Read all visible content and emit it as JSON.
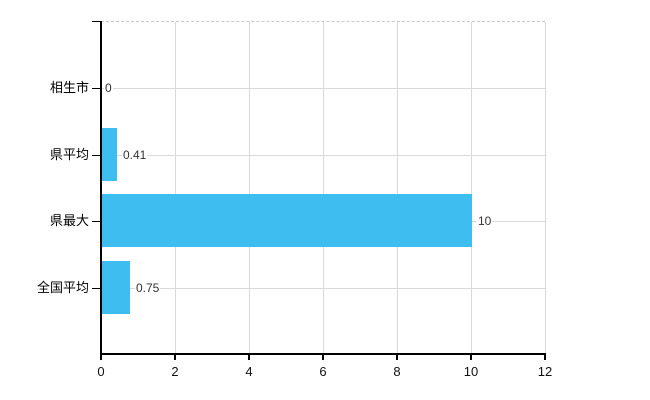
{
  "chart_data": {
    "type": "bar",
    "orientation": "horizontal",
    "title": "",
    "xlabel": "",
    "ylabel": "",
    "categories": [
      "相生市",
      "県平均",
      "県最大",
      "全国平均"
    ],
    "values": [
      0,
      0.41,
      10,
      0.75
    ],
    "value_labels": [
      "0",
      "0.41",
      "10",
      "0.75"
    ],
    "xlim": [
      0,
      12
    ],
    "x_ticks": [
      0,
      2,
      4,
      6,
      8,
      10,
      12
    ],
    "x_tick_labels": [
      "0",
      "2",
      "4",
      "6",
      "8",
      "10",
      "12"
    ],
    "grid": true,
    "legend_position": "none",
    "colors": {
      "bar": "#3dbdf0",
      "grid": "#d9d9d9",
      "plot_top_border": "#c9c9c9",
      "axis": "#000000",
      "category_label": "#000000",
      "value_label": "#333333",
      "tick_label": "#111111",
      "background": "#ffffff"
    }
  }
}
